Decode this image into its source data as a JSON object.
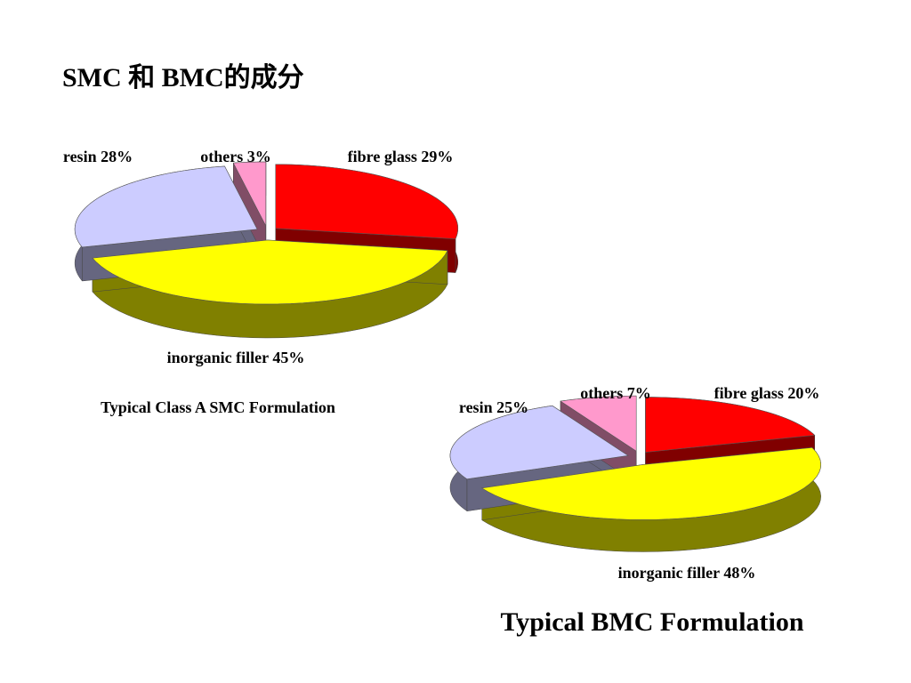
{
  "slide_title": "SMC 和 BMC的成分",
  "chart_data": [
    {
      "type": "pie3d",
      "title": "Typical Class A SMC Formulation",
      "values": [
        29,
        45,
        28,
        3
      ],
      "value_labels": [
        "fibre glass 29%",
        "inorganic filler 45%",
        "resin 28%",
        "others 3%"
      ],
      "colors": [
        "#ff0000",
        "#ffff00",
        "#ccccff",
        "#ff99cc"
      ]
    },
    {
      "type": "pie3d",
      "title": "Typical BMC Formulation",
      "values": [
        20,
        48,
        25,
        7
      ],
      "value_labels": [
        "fibre glass 20%",
        "inorganic filler 48%",
        "resin 25%",
        "others 7%"
      ],
      "colors": [
        "#ff0000",
        "#ffff00",
        "#ccccff",
        "#ff99cc"
      ]
    }
  ]
}
